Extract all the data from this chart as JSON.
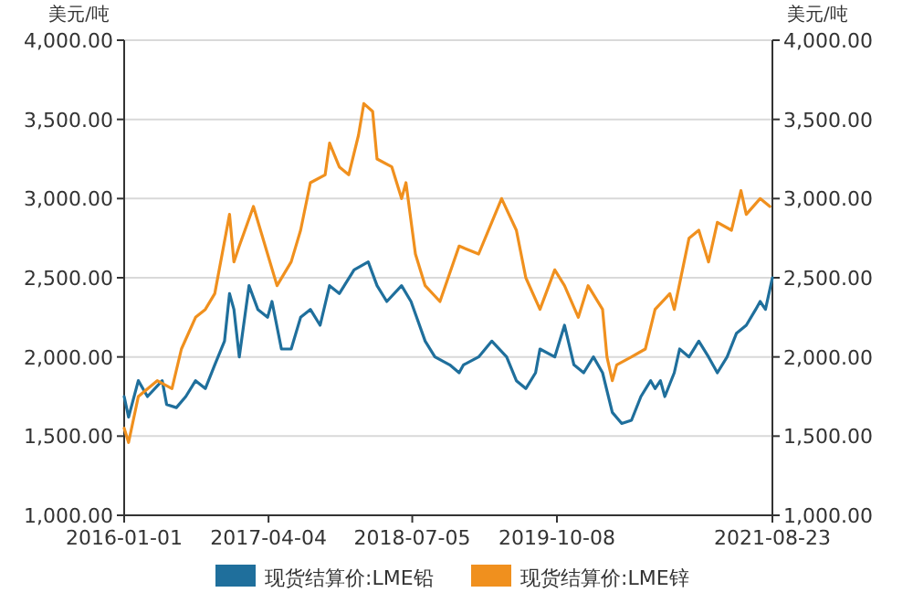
{
  "chart_data": {
    "type": "line",
    "ylabel": "美元/吨",
    "y2label": "美元/吨",
    "xlim": [
      "2016-01-01",
      "2021-08-23"
    ],
    "xticks": [
      "2016-01-01",
      "2017-04-04",
      "2018-07-05",
      "2019-10-08",
      "2021-08-23"
    ],
    "ylim": [
      1000,
      4000
    ],
    "yticks": [
      {
        "value": 1000,
        "label": "1,000.00"
      },
      {
        "value": 1500,
        "label": "1,500.00"
      },
      {
        "value": 2000,
        "label": "2,000.00"
      },
      {
        "value": 2500,
        "label": "2,500.00"
      },
      {
        "value": 3000,
        "label": "3,000.00"
      },
      {
        "value": 3500,
        "label": "3,500.00"
      },
      {
        "value": 4000,
        "label": "4,000.00"
      }
    ],
    "y2lim": [
      1000,
      4000
    ],
    "y2ticks": [
      {
        "value": 1000,
        "label": "1,000.00"
      },
      {
        "value": 1500,
        "label": "1,500.00"
      },
      {
        "value": 2000,
        "label": "2,000.00"
      },
      {
        "value": 2500,
        "label": "2,500.00"
      },
      {
        "value": 3000,
        "label": "3,000.00"
      },
      {
        "value": 3500,
        "label": "3,500.00"
      },
      {
        "value": 4000,
        "label": "4,000.00"
      }
    ],
    "grid": "y",
    "legend": "bottom",
    "marker": "none",
    "line_style": "solid",
    "series": [
      {
        "name": "现货结算价:LME铅",
        "color": "#1f6f9c",
        "x": [
          "2016-01-01",
          "2016-01-15",
          "2016-02-15",
          "2016-03-15",
          "2016-05-01",
          "2016-05-15",
          "2016-06-15",
          "2016-07-15",
          "2016-08-15",
          "2016-09-15",
          "2016-10-15",
          "2016-11-15",
          "2016-12-01",
          "2016-12-15",
          "2017-01-01",
          "2017-02-01",
          "2017-03-01",
          "2017-04-01",
          "2017-04-15",
          "2017-05-15",
          "2017-06-15",
          "2017-07-15",
          "2017-08-15",
          "2017-09-15",
          "2017-10-15",
          "2017-11-15",
          "2018-01-01",
          "2018-02-15",
          "2018-03-15",
          "2018-04-15",
          "2018-06-01",
          "2018-07-01",
          "2018-08-15",
          "2018-09-15",
          "2018-11-01",
          "2018-12-01",
          "2018-12-15",
          "2019-02-01",
          "2019-03-15",
          "2019-05-01",
          "2019-06-01",
          "2019-07-01",
          "2019-08-01",
          "2019-08-15",
          "2019-10-01",
          "2019-11-01",
          "2019-12-01",
          "2020-01-01",
          "2020-02-01",
          "2020-03-01",
          "2020-04-01",
          "2020-05-01",
          "2020-06-01",
          "2020-07-01",
          "2020-08-01",
          "2020-08-15",
          "2020-09-01",
          "2020-09-15",
          "2020-10-15",
          "2020-11-01",
          "2020-12-01",
          "2021-01-01",
          "2021-02-01",
          "2021-03-01",
          "2021-04-01",
          "2021-05-01",
          "2021-06-01",
          "2021-07-01",
          "2021-07-15",
          "2021-08-01",
          "2021-08-23"
        ],
        "values": [
          1750,
          1620,
          1850,
          1750,
          1850,
          1700,
          1680,
          1750,
          1850,
          1800,
          1950,
          2100,
          2400,
          2300,
          2000,
          2450,
          2300,
          2250,
          2350,
          2050,
          2050,
          2250,
          2300,
          2200,
          2450,
          2400,
          2550,
          2600,
          2450,
          2350,
          2450,
          2350,
          2100,
          2000,
          1950,
          1900,
          1950,
          2000,
          2100,
          2000,
          1850,
          1800,
          1900,
          2050,
          2000,
          2200,
          1950,
          1900,
          2000,
          1900,
          1650,
          1580,
          1600,
          1750,
          1850,
          1800,
          1850,
          1750,
          1900,
          2050,
          2000,
          2100,
          2000,
          1900,
          2000,
          2150,
          2200,
          2300,
          2350,
          2300,
          2500
        ]
      },
      {
        "name": "现货结算价:LME锌",
        "color": "#f0901e",
        "x": [
          "2016-01-01",
          "2016-01-15",
          "2016-02-15",
          "2016-04-15",
          "2016-06-01",
          "2016-07-01",
          "2016-08-15",
          "2016-09-15",
          "2016-10-15",
          "2016-12-01",
          "2016-12-15",
          "2017-01-01",
          "2017-02-15",
          "2017-04-01",
          "2017-05-01",
          "2017-06-15",
          "2017-07-15",
          "2017-08-15",
          "2017-10-01",
          "2017-10-15",
          "2017-11-15",
          "2017-12-15",
          "2018-01-15",
          "2018-02-01",
          "2018-03-01",
          "2018-03-15",
          "2018-05-01",
          "2018-06-01",
          "2018-06-15",
          "2018-07-15",
          "2018-08-15",
          "2018-10-01",
          "2018-12-01",
          "2019-02-01",
          "2019-04-15",
          "2019-06-01",
          "2019-07-01",
          "2019-08-15",
          "2019-10-01",
          "2019-11-01",
          "2019-12-15",
          "2020-01-15",
          "2020-03-01",
          "2020-03-15",
          "2020-04-01",
          "2020-04-15",
          "2020-06-01",
          "2020-07-15",
          "2020-08-15",
          "2020-10-01",
          "2020-10-15",
          "2020-12-01",
          "2021-01-01",
          "2021-02-01",
          "2021-03-01",
          "2021-04-15",
          "2021-05-15",
          "2021-06-01",
          "2021-07-15",
          "2021-08-15"
        ],
        "values": [
          1550,
          1460,
          1750,
          1850,
          1800,
          2050,
          2250,
          2300,
          2400,
          2900,
          2600,
          2700,
          2950,
          2650,
          2450,
          2600,
          2800,
          3100,
          3150,
          3350,
          3200,
          3150,
          3400,
          3600,
          3550,
          3250,
          3200,
          3000,
          3100,
          2650,
          2450,
          2350,
          2700,
          2650,
          3000,
          2800,
          2500,
          2300,
          2550,
          2450,
          2250,
          2450,
          2300,
          2000,
          1850,
          1950,
          2000,
          2050,
          2300,
          2400,
          2300,
          2750,
          2800,
          2600,
          2850,
          2800,
          3050,
          2900,
          3000,
          2950
        ]
      }
    ]
  }
}
